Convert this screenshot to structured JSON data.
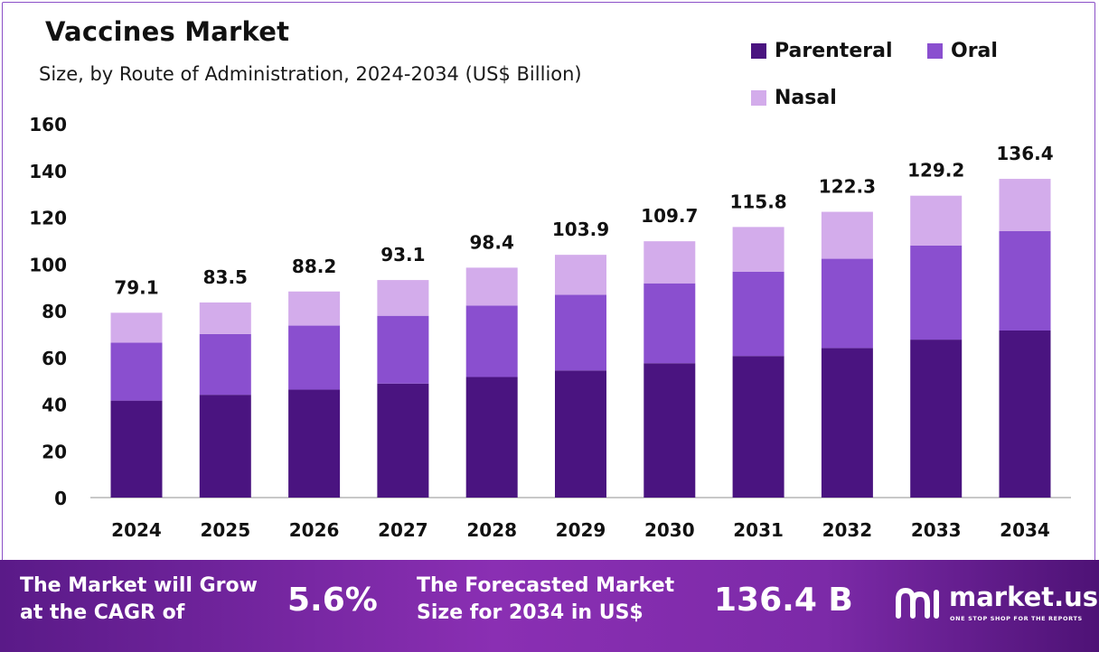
{
  "chart_data": {
    "type": "bar",
    "stacked": true,
    "title": "Vaccines Market",
    "subtitle": "Size, by Route of Administration, 2024-2034 (US$ Billion)",
    "categories": [
      "2024",
      "2025",
      "2026",
      "2027",
      "2028",
      "2029",
      "2030",
      "2031",
      "2032",
      "2033",
      "2034"
    ],
    "series": [
      {
        "name": "Parenteral",
        "color": "#4a1480",
        "values": [
          41.5,
          44.0,
          46.2,
          48.8,
          51.6,
          54.4,
          57.5,
          60.6,
          64.0,
          67.6,
          71.5
        ]
      },
      {
        "name": "Oral",
        "color": "#8a4fcf",
        "values": [
          24.8,
          26.0,
          27.4,
          29.0,
          30.6,
          32.4,
          34.2,
          36.1,
          38.2,
          40.3,
          42.6
        ]
      },
      {
        "name": "Nasal",
        "color": "#d3aceb",
        "values": [
          12.8,
          13.5,
          14.6,
          15.3,
          16.2,
          17.1,
          18.0,
          19.1,
          20.1,
          21.3,
          22.3
        ]
      }
    ],
    "totals": [
      "79.1",
      "83.5",
      "88.2",
      "93.1",
      "98.4",
      "103.9",
      "109.7",
      "115.8",
      "122.3",
      "129.2",
      "136.4"
    ],
    "ylim": [
      0,
      160
    ],
    "yticks": [
      "0",
      "20",
      "40",
      "60",
      "80",
      "100",
      "120",
      "140",
      "160"
    ],
    "grid": false,
    "legend_position": "top-right"
  },
  "banner": {
    "cagr_text_1": "The Market will Grow",
    "cagr_text_2": "at the CAGR of",
    "cagr_value": "5.6%",
    "forecast_text_1": "The Forecasted Market",
    "forecast_text_2": "Size for 2034 in US$",
    "forecast_value": "136.4 B"
  },
  "brand": {
    "name": "market.us",
    "tagline": "ONE STOP SHOP FOR THE REPORTS",
    "logo_icon": "market-us-logo-icon"
  }
}
